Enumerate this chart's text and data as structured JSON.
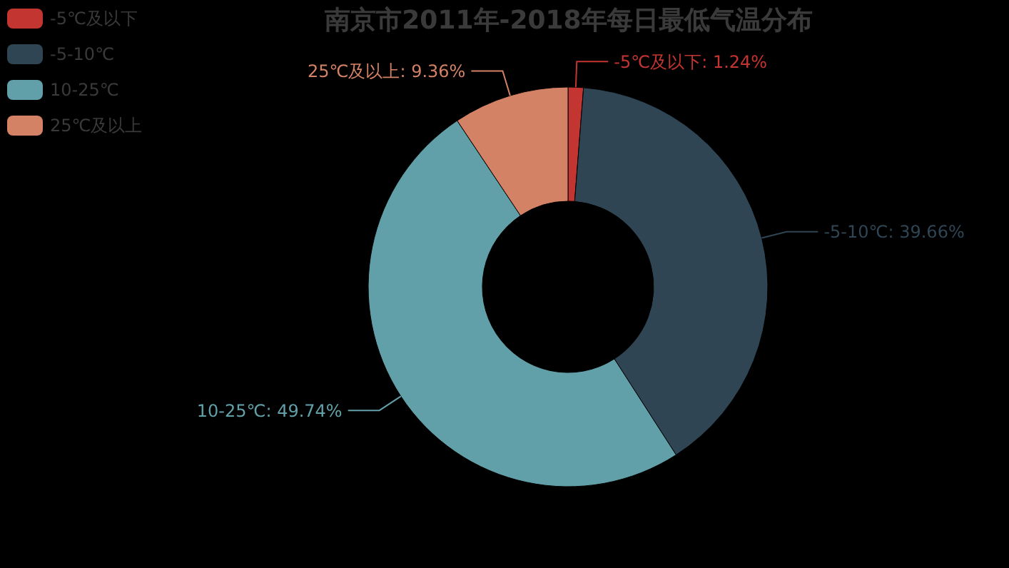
{
  "chart_data": {
    "type": "donut",
    "title": "南京市2011年-2018年每日最低气温分布",
    "categories": [
      "-5℃及以下",
      "-5-10℃",
      "10-25℃",
      "25℃及以上"
    ],
    "values": [
      1.24,
      39.66,
      49.74,
      9.36
    ],
    "colors": [
      "#c23531",
      "#2f4554",
      "#61a0a8",
      "#d48265"
    ],
    "value_labels": [
      "-5℃及以下: 1.24%",
      "-5-10℃: 39.66%",
      "10-25℃: 49.74%",
      "25℃及以上: 9.36%"
    ],
    "legend": "top left"
  }
}
